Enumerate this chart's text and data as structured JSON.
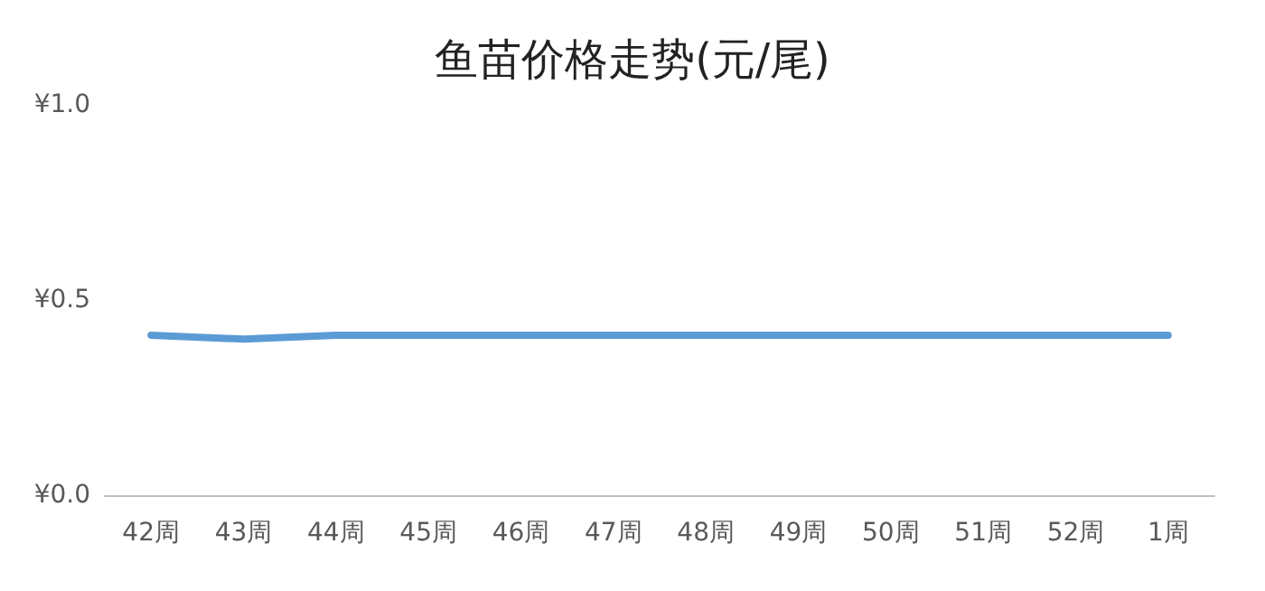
{
  "chart_data": {
    "type": "line",
    "title": "鱼苗价格走势(元/尾)",
    "categories": [
      "42周",
      "43周",
      "44周",
      "45周",
      "46周",
      "47周",
      "48周",
      "49周",
      "50周",
      "51周",
      "52周",
      "1周"
    ],
    "series": [
      {
        "color": "#5b9bd5",
        "values": [
          0.41,
          0.4,
          0.41,
          0.41,
          0.41,
          0.41,
          0.41,
          0.41,
          0.41,
          0.41,
          0.41,
          0.41
        ]
      }
    ],
    "ylim": [
      0,
      1
    ],
    "yticks": [
      {
        "value": 0,
        "label": "¥0.0"
      },
      {
        "value": 0.5,
        "label": "¥0.5"
      },
      {
        "value": 1,
        "label": "¥1.0"
      }
    ],
    "grid": false,
    "marker": "none",
    "line_style": "solid"
  }
}
